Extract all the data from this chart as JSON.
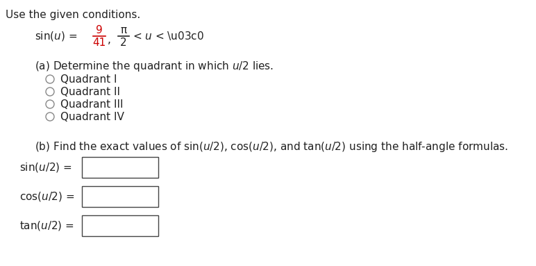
{
  "bg_color": "#ffffff",
  "title": "Use the given conditions.",
  "numerator": "9",
  "denominator": "41",
  "red_color": "#cc0000",
  "black_color": "#222222",
  "gray_color": "#555555",
  "quadrants": [
    "Quadrant I",
    "Quadrant II",
    "Quadrant III",
    "Quadrant IV"
  ],
  "part_b_text": "(b) Find the exact values of sin(u/2), cos(u/2), and tan(u/2) using the half-angle formulas.",
  "input_labels": [
    "sin(u/2) =",
    "cos(u/2) =",
    "tan(u/2) ="
  ],
  "fs": 11.0,
  "fs_small": 10.5
}
